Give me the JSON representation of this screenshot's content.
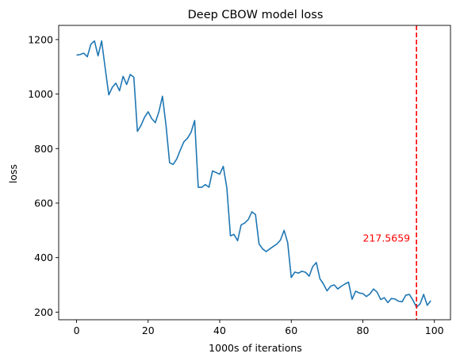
{
  "chart_data": {
    "type": "line",
    "title": "Deep CBOW model loss",
    "xlabel": "1000s of iterations",
    "ylabel": "loss",
    "xlim": [
      -5,
      104.5
    ],
    "ylim": [
      172,
      1252
    ],
    "xticks": [
      0,
      20,
      40,
      60,
      80,
      100
    ],
    "xtick_labels": [
      "0",
      "20",
      "40",
      "60",
      "80",
      "100"
    ],
    "yticks": [
      200,
      400,
      600,
      800,
      1000,
      1200
    ],
    "ytick_labels": [
      "200",
      "400",
      "600",
      "800",
      "1000",
      "1200"
    ],
    "grid": false,
    "legend": "none",
    "series": [
      {
        "color": "#1f77b4",
        "x": [
          0,
          1,
          2,
          3,
          4,
          5,
          6,
          7,
          8,
          9,
          10,
          11,
          12,
          13,
          14,
          15,
          16,
          17,
          18,
          19,
          20,
          21,
          22,
          23,
          24,
          25,
          26,
          27,
          28,
          29,
          30,
          31,
          32,
          33,
          34,
          35,
          36,
          37,
          38,
          39,
          40,
          41,
          42,
          43,
          44,
          45,
          46,
          47,
          48,
          49,
          50,
          51,
          52,
          53,
          54,
          55,
          56,
          57,
          58,
          59,
          60,
          61,
          62,
          63,
          64,
          65,
          66,
          67,
          68,
          69,
          70,
          71,
          72,
          73,
          74,
          75,
          76,
          77,
          78,
          79,
          80,
          81,
          82,
          83,
          84,
          85,
          86,
          87,
          88,
          89,
          90,
          91,
          92,
          93,
          94,
          95,
          96,
          97,
          98,
          99
        ],
        "y": [
          1143,
          1145,
          1150,
          1137,
          1183,
          1195,
          1140,
          1195,
          1095,
          997,
          1025,
          1040,
          1012,
          1065,
          1035,
          1072,
          1062,
          863,
          885,
          915,
          935,
          910,
          895,
          935,
          992,
          885,
          748,
          742,
          762,
          795,
          825,
          838,
          860,
          903,
          658,
          658,
          668,
          658,
          718,
          712,
          706,
          735,
          655,
          480,
          485,
          462,
          520,
          527,
          540,
          568,
          558,
          450,
          432,
          422,
          432,
          441,
          450,
          465,
          500,
          455,
          327,
          347,
          343,
          350,
          346,
          332,
          367,
          382,
          323,
          303,
          278,
          295,
          300,
          285,
          295,
          303,
          310,
          247,
          277,
          270,
          268,
          257,
          267,
          285,
          273,
          246,
          253,
          235,
          250,
          248,
          240,
          238,
          262,
          265,
          244,
          218,
          230,
          265,
          225,
          242
        ]
      }
    ],
    "vline": {
      "x": 95,
      "color": "#ff0000",
      "style": "dashed"
    },
    "annotations": [
      {
        "text": "217.5659",
        "x": 80,
        "y": 470,
        "color": "#ff0000"
      }
    ]
  }
}
